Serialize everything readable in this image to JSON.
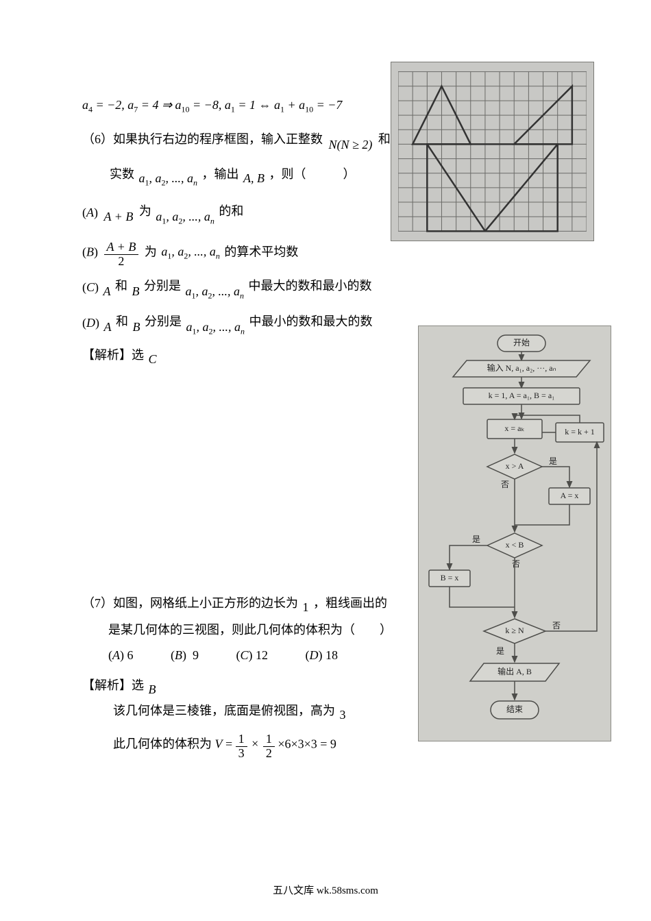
{
  "footer": "五八文库 wk.58sms.com",
  "eq5": "a₄ = −2, a₇ = 4 ⇒ a₁₀ = −8, a₁ = 1 ⇔ a₁ + a₁₀ = −7",
  "q6_prefix": "（6）如果执行右边的程序框图，输入正整数",
  "q6_cond": "N(N ≥ 2)",
  "q6_suffix": "和",
  "q6_line2a": "实数",
  "q6_seq": "a₁, a₂, ..., aₙ",
  "q6_line2b": "，输出",
  "q6_line2c": "A, B",
  "q6_line2d": "，则（　　　）",
  "optA_left": "(A)",
  "optA_expr": "A + B",
  "optA_mid": "为",
  "optA_right": "的和",
  "optB_left": "(B)",
  "optB_num": "A + B",
  "optB_den": "2",
  "optB_mid": "为",
  "optB_right": "的算术平均数",
  "optC_left": "(C)",
  "optC_var": "A",
  "optC_mid1": "和",
  "optC_var2": "B",
  "optC_mid2": "分别是",
  "optC_right": "中最大的数和最小的数",
  "optD_left": "(D)",
  "optD_right": "中最小的数和最大的数",
  "q6_ans": "【解析】选",
  "q6_ans_letter": "C",
  "q7_line1": "（7）如图，网格纸上小正方形的边长为",
  "q7_one": "1",
  "q7_line1b": "，粗线画出的",
  "q7_line2": "是某几何体的三视图，则此几何体的体积为（　　）",
  "q7_A": "(A) 6",
  "q7_B": "(B)  9",
  "q7_C": "(C) 12",
  "q7_D": "(D) 18",
  "q7_ans": "【解析】选",
  "q7_ans_letter": "B",
  "q7_exp1": "该几何体是三棱锥，底面是俯视图，高为",
  "q7_exp1_val": "3",
  "q7_exp2a": "此几何体的体积为",
  "q7_exp2_V": "V",
  "q7_exp2_eq": " = ",
  "q7_frac1_num": "1",
  "q7_frac1_den": "3",
  "q7_times": "×",
  "q7_frac2_num": "1",
  "q7_frac2_den": "2",
  "q7_tail": "×6×3×3 = 9",
  "grid": {
    "cols": 13,
    "rows": 11,
    "cell": 21,
    "bg": "#c8c8c5",
    "line_color": "#6b6b68",
    "heavy_color": "#333333",
    "heavy_width": 2.5,
    "tri1": [
      [
        1,
        1
      ],
      [
        5,
        1
      ],
      [
        3,
        5
      ]
    ],
    "tri2": [
      [
        8,
        1
      ],
      [
        12,
        1
      ],
      [
        12,
        5
      ]
    ],
    "bottom_shape": [
      [
        2,
        5
      ],
      [
        2,
        11
      ],
      [
        11,
        11
      ],
      [
        11,
        5
      ]
    ],
    "diag1": [
      [
        2,
        5
      ],
      [
        6,
        11
      ]
    ],
    "diag2": [
      [
        11,
        5
      ],
      [
        6,
        11
      ]
    ]
  },
  "flowchart": {
    "bg": "#cfcfca",
    "stroke": "#4d4d4a",
    "font": 12,
    "labels": {
      "start": "开始",
      "input": "输入 N, a₁, a₂, ···, aₙ",
      "init": "k = 1, A = a₁, B = a₁",
      "setx": "x = aₖ",
      "inc": "k = k + 1",
      "cmpA": "x > A",
      "assignA": "A = x",
      "cmpB": "x < B",
      "assignB": "B = x",
      "cmpN": "k ≥ N",
      "output": "输出 A, B",
      "end": "结束",
      "yes": "是",
      "no": "否"
    }
  }
}
